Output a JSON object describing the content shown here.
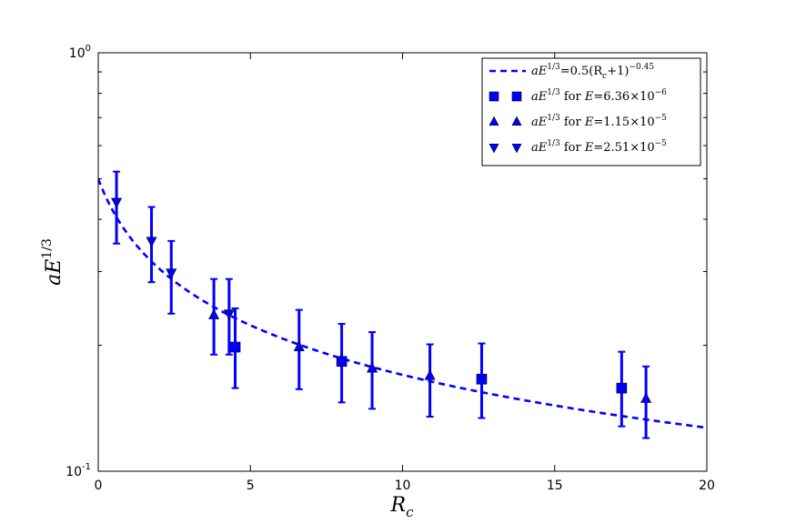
{
  "chart_data": {
    "type": "scatter",
    "title": "",
    "xlabel": "R_c",
    "ylabel": "aE^{1/3}",
    "xlim": [
      0,
      20
    ],
    "ylim": [
      0.1,
      1.0
    ],
    "yscale": "log",
    "grid": false,
    "legend_placement": "top-right",
    "x_ticks": [
      0,
      5,
      10,
      15,
      20
    ],
    "y_ticks": [
      {
        "value": 0.1,
        "base": "10",
        "exp": "-1"
      },
      {
        "value": 1.0,
        "base": "10",
        "exp": "0"
      }
    ],
    "color": "#0000ff",
    "fit": {
      "label_lhs": "aE",
      "label_sup": "1/3",
      "label_rhs": "=0.5(R",
      "label_sub": "c",
      "label_tail": "+1)",
      "label_tail_sup": "−0.45",
      "coefficient": 0.5,
      "exponent": -0.45,
      "style": "dashed"
    },
    "series": [
      {
        "legend_prefix": "aE",
        "legend_sup": "1/3",
        "legend_mid": " for ",
        "legend_var": "E",
        "legend_eq": "=6.36×10",
        "legend_exp": "−6",
        "marker": "square",
        "points": [
          {
            "x": 4.5,
            "y": 0.198,
            "lo": 0.158,
            "hi": 0.245
          },
          {
            "x": 8.0,
            "y": 0.183,
            "lo": 0.146,
            "hi": 0.225
          },
          {
            "x": 12.6,
            "y": 0.166,
            "lo": 0.134,
            "hi": 0.202
          },
          {
            "x": 17.2,
            "y": 0.158,
            "lo": 0.128,
            "hi": 0.193
          }
        ]
      },
      {
        "legend_prefix": "aE",
        "legend_sup": "1/3",
        "legend_mid": " for ",
        "legend_var": "E",
        "legend_eq": "=1.15×10",
        "legend_exp": "−5",
        "marker": "triangle-up",
        "points": [
          {
            "x": 3.8,
            "y": 0.236,
            "lo": 0.19,
            "hi": 0.288
          },
          {
            "x": 6.6,
            "y": 0.198,
            "lo": 0.157,
            "hi": 0.243
          },
          {
            "x": 9.0,
            "y": 0.176,
            "lo": 0.141,
            "hi": 0.215
          },
          {
            "x": 10.9,
            "y": 0.169,
            "lo": 0.135,
            "hi": 0.201
          },
          {
            "x": 18.0,
            "y": 0.149,
            "lo": 0.12,
            "hi": 0.178
          }
        ]
      },
      {
        "legend_prefix": "aE",
        "legend_sup": "1/3",
        "legend_mid": " for ",
        "legend_var": "E",
        "legend_eq": "=2.51×10",
        "legend_exp": "−5",
        "marker": "triangle-down",
        "points": [
          {
            "x": 0.6,
            "y": 0.44,
            "lo": 0.35,
            "hi": 0.52
          },
          {
            "x": 1.75,
            "y": 0.355,
            "lo": 0.283,
            "hi": 0.428
          },
          {
            "x": 2.4,
            "y": 0.298,
            "lo": 0.238,
            "hi": 0.355
          },
          {
            "x": 4.3,
            "y": 0.238,
            "lo": 0.19,
            "hi": 0.288
          }
        ]
      }
    ]
  }
}
